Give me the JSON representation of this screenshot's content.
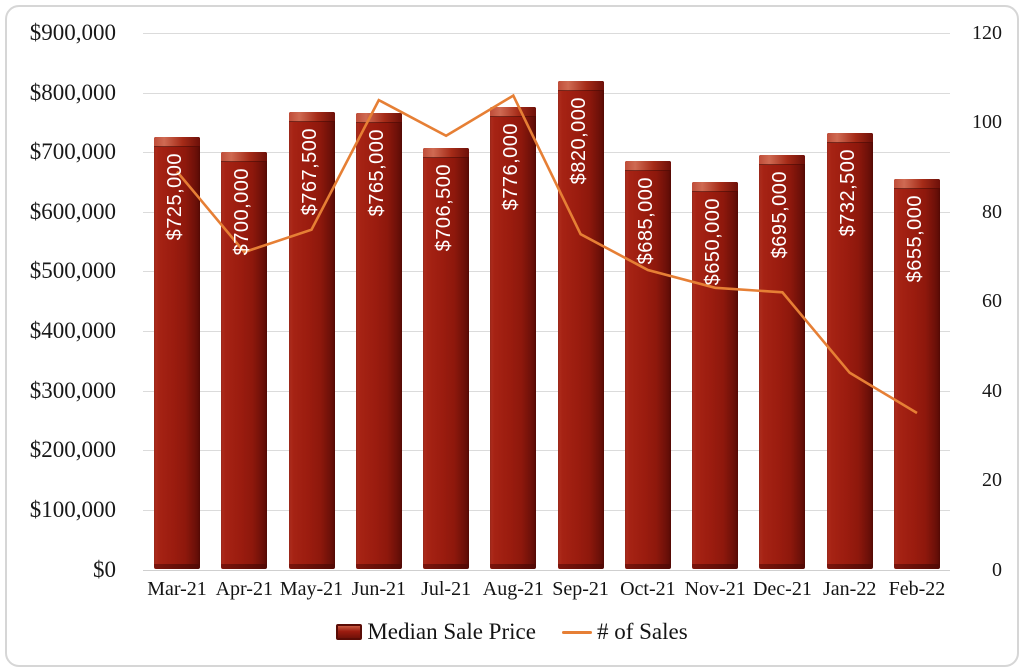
{
  "colors": {
    "bar_fill": "#9b1c0f",
    "bar_highlight": "#c85a42",
    "bar_shadow": "#5a0c06",
    "line": "#e67f35",
    "gridline": "#dbdbdb",
    "text": "#181818",
    "frame_border": "#d6d6d6",
    "bar_label_text": "#ffffff"
  },
  "chart_data": {
    "type": "combo-bar-line",
    "title": "",
    "categories": [
      "Mar-21",
      "Apr-21",
      "May-21",
      "Jun-21",
      "Jul-21",
      "Aug-21",
      "Sep-21",
      "Oct-21",
      "Nov-21",
      "Dec-21",
      "Jan-22",
      "Feb-22"
    ],
    "series": [
      {
        "name": "Median Sale Price",
        "type": "bar",
        "axis": "left",
        "color": "#9b1c0f",
        "values": [
          725000,
          700000,
          767500,
          765000,
          706500,
          776000,
          820000,
          685000,
          650000,
          695000,
          732500,
          655000
        ],
        "labels": [
          "$725,000",
          "$700,000",
          "$767,500",
          "$765,000",
          "$706,500",
          "$776,000",
          "$820,000",
          "$685,000",
          "$650,000",
          "$695,000",
          "$732,500",
          "$655,000"
        ]
      },
      {
        "name": "# of Sales",
        "type": "line",
        "axis": "right",
        "color": "#e67f35",
        "values": [
          89,
          71,
          76,
          105,
          97,
          106,
          75,
          67,
          63,
          62,
          44,
          35
        ]
      }
    ],
    "left_axis": {
      "min": 0,
      "max": 900000,
      "step": 100000,
      "tick_labels": [
        "$0",
        "$100,000",
        "$200,000",
        "$300,000",
        "$400,000",
        "$500,000",
        "$600,000",
        "$700,000",
        "$800,000",
        "$900,000"
      ]
    },
    "right_axis": {
      "min": 0,
      "max": 120,
      "step": 20,
      "tick_labels": [
        "0",
        "20",
        "40",
        "60",
        "80",
        "100",
        "120"
      ]
    },
    "grid": true,
    "legend_position": "bottom"
  }
}
